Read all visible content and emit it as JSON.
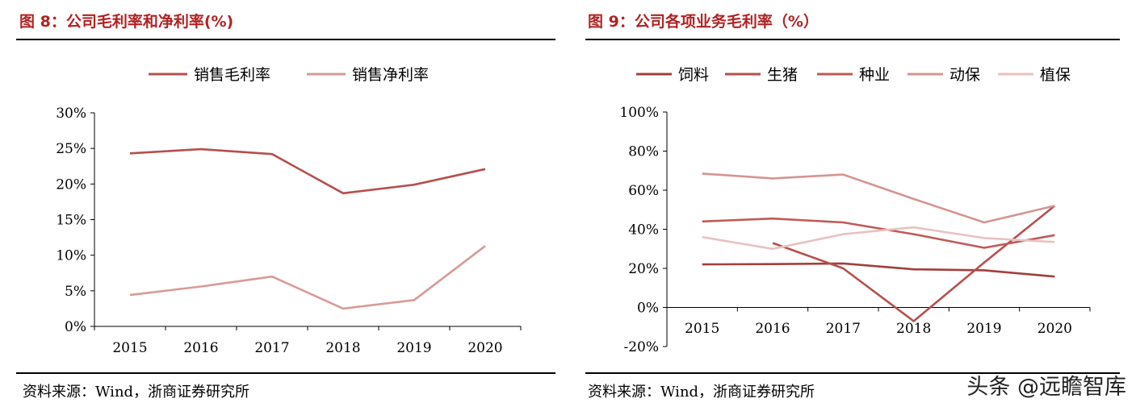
{
  "left": {
    "title": "图 8：公司毛利率和净利率(%)",
    "source": "资料来源：Wind，浙商证券研究所"
  },
  "right": {
    "title": "图 9：公司各项业务毛利率（%）",
    "source": "资料来源：Wind，浙商证券研究所"
  },
  "watermark": "头条 @远瞻智库",
  "chart_data": [
    {
      "type": "line",
      "x": [
        "2015",
        "2016",
        "2017",
        "2018",
        "2019",
        "2020"
      ],
      "series": [
        {
          "name": "销售毛利率",
          "color": "#b5504d",
          "values": [
            24.3,
            24.9,
            24.2,
            18.7,
            19.9,
            22.1
          ]
        },
        {
          "name": "销售净利率",
          "color": "#d89a97",
          "values": [
            4.4,
            5.6,
            7.0,
            2.5,
            3.7,
            11.3
          ]
        }
      ],
      "ylim": [
        0,
        30
      ],
      "yticks": [
        0,
        5,
        10,
        15,
        20,
        25,
        30
      ],
      "ytick_labels": [
        "0%",
        "5%",
        "10%",
        "15%",
        "20%",
        "25%",
        "30%"
      ],
      "legend": "top"
    },
    {
      "type": "line",
      "x": [
        "2015",
        "2016",
        "2017",
        "2018",
        "2019",
        "2020"
      ],
      "series": [
        {
          "name": "饲料",
          "color": "#a23f3c",
          "values": [
            22,
            22.2,
            22.5,
            19.5,
            19,
            15.8
          ]
        },
        {
          "name": "生猪",
          "color": "#b5504d",
          "values": [
            null,
            33,
            20,
            -7,
            23,
            52
          ]
        },
        {
          "name": "种业",
          "color": "#c05a57",
          "values": [
            44,
            45.5,
            43.5,
            37.5,
            30.5,
            37
          ]
        },
        {
          "name": "动保",
          "color": "#d49592",
          "values": [
            68.5,
            66,
            68,
            55.5,
            43.5,
            52
          ]
        },
        {
          "name": "植保",
          "color": "#e8c2c0",
          "values": [
            36,
            30,
            37.5,
            41,
            35.5,
            33.5
          ]
        }
      ],
      "ylim": [
        -20,
        100
      ],
      "yticks": [
        -20,
        0,
        20,
        40,
        60,
        80,
        100
      ],
      "ytick_labels": [
        "-20%",
        "0%",
        "20%",
        "40%",
        "60%",
        "80%",
        "100%"
      ],
      "legend": "top"
    }
  ]
}
